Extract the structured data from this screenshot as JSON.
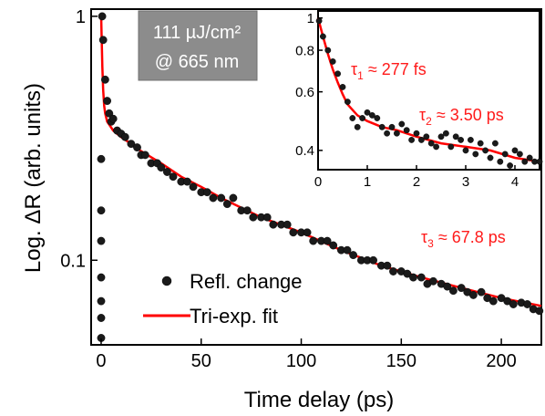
{
  "chart_data": [
    {
      "type": "scatter",
      "panel": "main",
      "xlabel": "Time delay (ps)",
      "ylabel": "Log. ΔR (arb. units)",
      "xlim": [
        -5,
        220
      ],
      "ylim": [
        0.045,
        1.07
      ],
      "y_scale": "log",
      "x_ticks": [
        0,
        50,
        100,
        150,
        200
      ],
      "y_ticks": [
        {
          "value": 0.1,
          "label": "0.1"
        },
        {
          "value": 1,
          "label": "1"
        }
      ],
      "grid": false,
      "legend_position": "bottom-left",
      "legend": [
        {
          "label": "Refl. change",
          "kind": "marker"
        },
        {
          "label": "Tri-exp. fit",
          "kind": "line"
        }
      ],
      "box_text": [
        "111 µJ/cm²",
        "@ 665 nm"
      ],
      "annotations": [
        {
          "text": "τ3 ≈ 67.8 ps",
          "symbol": "τ",
          "sub": "3",
          "rest": " ≈ 67.8 ps"
        }
      ],
      "series": [
        {
          "name": "Refl. change",
          "kind": "scatter",
          "color": "#1a1a1a",
          "x": [
            0,
            0,
            0,
            0,
            0,
            0,
            0,
            0.5,
            1,
            2,
            3,
            4,
            5,
            6,
            8,
            10,
            12,
            15,
            18,
            20,
            22,
            25,
            28,
            30,
            33,
            36,
            40,
            43,
            46,
            50,
            53,
            56,
            60,
            63,
            66,
            70,
            73,
            76,
            80,
            83,
            86,
            90,
            93,
            96,
            100,
            103,
            106,
            110,
            113,
            116,
            120,
            123,
            126,
            130,
            133,
            136,
            140,
            143,
            146,
            150,
            153,
            156,
            160,
            163,
            166,
            170,
            173,
            176,
            180,
            183,
            186,
            190,
            193,
            196,
            200,
            203,
            206,
            210,
            213,
            216,
            219
          ],
          "y": [
            0.048,
            0.058,
            0.068,
            0.085,
            0.12,
            0.16,
            0.26,
            1.0,
            0.8,
            0.55,
            0.45,
            0.4,
            0.37,
            0.38,
            0.34,
            0.33,
            0.32,
            0.3,
            0.29,
            0.27,
            0.27,
            0.25,
            0.25,
            0.24,
            0.23,
            0.22,
            0.21,
            0.21,
            0.2,
            0.19,
            0.19,
            0.18,
            0.18,
            0.17,
            0.18,
            0.16,
            0.16,
            0.15,
            0.15,
            0.15,
            0.14,
            0.14,
            0.14,
            0.13,
            0.13,
            0.13,
            0.12,
            0.12,
            0.12,
            0.115,
            0.11,
            0.11,
            0.105,
            0.1,
            0.1,
            0.1,
            0.095,
            0.095,
            0.09,
            0.09,
            0.088,
            0.085,
            0.085,
            0.08,
            0.082,
            0.08,
            0.078,
            0.075,
            0.077,
            0.074,
            0.072,
            0.074,
            0.07,
            0.068,
            0.07,
            0.068,
            0.066,
            0.067,
            0.066,
            0.063,
            0.062
          ]
        },
        {
          "name": "Tri-exp. fit",
          "kind": "line",
          "color": "#ff0000",
          "x": [
            0,
            0.3,
            0.6,
            1,
            1.5,
            2,
            3,
            4,
            6,
            8,
            10,
            15,
            20,
            30,
            40,
            50,
            60,
            80,
            100,
            120,
            140,
            160,
            180,
            200,
            220
          ],
          "y": [
            1.0,
            0.8,
            0.62,
            0.5,
            0.43,
            0.4,
            0.37,
            0.36,
            0.34,
            0.33,
            0.32,
            0.3,
            0.28,
            0.25,
            0.22,
            0.2,
            0.18,
            0.15,
            0.13,
            0.11,
            0.095,
            0.085,
            0.077,
            0.07,
            0.065
          ]
        }
      ]
    },
    {
      "type": "scatter",
      "panel": "inset",
      "xlim": [
        0,
        4.5
      ],
      "ylim": [
        0.35,
        1.05
      ],
      "y_scale": "log",
      "x_ticks": [
        0,
        1,
        2,
        3,
        4
      ],
      "y_ticks": [
        {
          "value": 0.4,
          "label": "0.4"
        },
        {
          "value": 0.6,
          "label": "0.6"
        },
        {
          "value": 0.8,
          "label": "0.8"
        },
        {
          "value": 1,
          "label": "1"
        }
      ],
      "grid": false,
      "annotations": [
        {
          "text": "τ1 ≈ 277 fs",
          "symbol": "τ",
          "sub": "1",
          "rest": " ≈ 277 fs"
        },
        {
          "text": "τ2 ≈ 3.50 ps",
          "symbol": "τ",
          "sub": "2",
          "rest": " ≈ 3.50 ps"
        }
      ],
      "series": [
        {
          "name": "Refl. change",
          "kind": "scatter",
          "color": "#1a1a1a",
          "x": [
            0.02,
            0.1,
            0.2,
            0.3,
            0.4,
            0.5,
            0.6,
            0.7,
            0.8,
            0.9,
            1.0,
            1.1,
            1.2,
            1.3,
            1.4,
            1.5,
            1.6,
            1.7,
            1.8,
            1.9,
            2.0,
            2.1,
            2.2,
            2.3,
            2.4,
            2.5,
            2.6,
            2.7,
            2.8,
            2.9,
            3.0,
            3.1,
            3.2,
            3.3,
            3.4,
            3.5,
            3.6,
            3.7,
            3.8,
            3.9,
            4.0,
            4.1,
            4.2,
            4.3,
            4.4,
            4.5
          ],
          "y": [
            0.98,
            0.88,
            0.8,
            0.74,
            0.68,
            0.62,
            0.56,
            0.5,
            0.47,
            0.5,
            0.52,
            0.51,
            0.5,
            0.47,
            0.45,
            0.47,
            0.45,
            0.48,
            0.46,
            0.43,
            0.45,
            0.43,
            0.44,
            0.42,
            0.41,
            0.44,
            0.45,
            0.41,
            0.44,
            0.43,
            0.4,
            0.43,
            0.39,
            0.42,
            0.4,
            0.38,
            0.42,
            0.37,
            0.39,
            0.36,
            0.4,
            0.39,
            0.37,
            0.38,
            0.37,
            0.37
          ]
        },
        {
          "name": "Tri-exp. fit",
          "kind": "line",
          "color": "#ff0000",
          "x": [
            0,
            0.1,
            0.2,
            0.3,
            0.4,
            0.5,
            0.6,
            0.8,
            1.0,
            1.3,
            1.6,
            2.0,
            2.5,
            3.0,
            3.5,
            4.0,
            4.5
          ],
          "y": [
            1.0,
            0.88,
            0.78,
            0.7,
            0.64,
            0.59,
            0.55,
            0.51,
            0.49,
            0.47,
            0.46,
            0.44,
            0.42,
            0.41,
            0.4,
            0.38,
            0.37
          ]
        }
      ]
    }
  ]
}
